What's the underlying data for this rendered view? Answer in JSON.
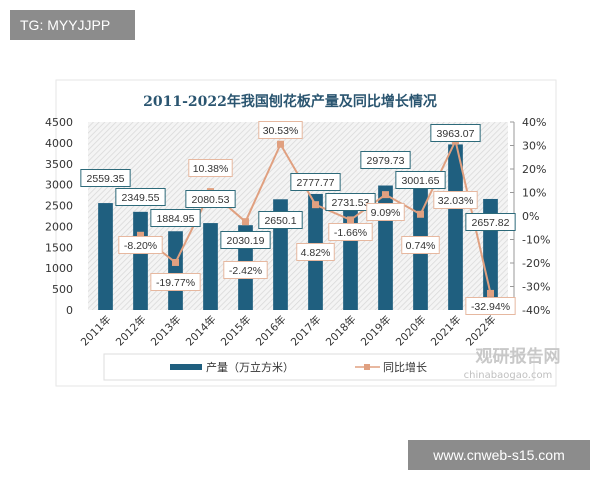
{
  "overlay": {
    "top_tag": "TG: MYYJJPP",
    "bottom_site": "www.cnweb-s15.com"
  },
  "watermark": {
    "brand": "观研报告网",
    "url": "chinabaogao.com"
  },
  "chart_data": {
    "type": "bar+line",
    "title": "2011-2022年我国刨花板产量及同比增长情况",
    "categories": [
      "2011年",
      "2012年",
      "2013年",
      "2014年",
      "2015年",
      "2016年",
      "2017年",
      "2018年",
      "2019年",
      "2020年",
      "2021年",
      "2022年"
    ],
    "series": [
      {
        "name": "产量（万立方米）",
        "type": "bar",
        "axis": "left",
        "color": "#1f5f7f",
        "values": [
          2559.35,
          2349.55,
          1884.95,
          2080.53,
          2030.19,
          2650.1,
          2777.77,
          2731.53,
          2979.73,
          3001.65,
          3963.07,
          2657.82
        ],
        "labels": [
          "2559.35",
          "2349.55",
          "1884.95",
          "2080.53",
          "2030.19",
          "2650.1",
          "2777.77",
          "2731.53",
          "2979.73",
          "3001.65",
          "3963.07",
          "2657.82"
        ]
      },
      {
        "name": "同比增长",
        "type": "line",
        "axis": "right",
        "color": "#e0a080",
        "values": [
          null,
          -8.2,
          -19.77,
          10.38,
          -2.42,
          30.53,
          4.82,
          -1.66,
          9.09,
          0.74,
          32.03,
          -32.94
        ],
        "labels": [
          "",
          "-8.20%",
          "-19.77%",
          "10.38%",
          "-2.42%",
          "30.53%",
          "4.82%",
          "-1.66%",
          "9.09%",
          "0.74%",
          "32.03%",
          "-32.94%"
        ]
      }
    ],
    "y_left": {
      "range": [
        0,
        4500
      ],
      "ticks": [
        "0",
        "500",
        "1000",
        "1500",
        "2000",
        "2500",
        "3000",
        "3500",
        "4000",
        "4500"
      ]
    },
    "y_right": {
      "range": [
        -40,
        40
      ],
      "ticks": [
        "-40%",
        "-30%",
        "-20%",
        "-10%",
        "0%",
        "10%",
        "20%",
        "30%",
        "40%"
      ]
    },
    "legend_placement": "bottom",
    "grid": false
  }
}
